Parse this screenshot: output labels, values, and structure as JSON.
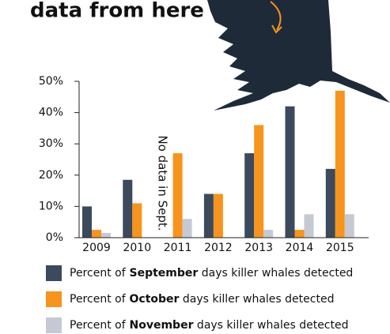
{
  "chart_data": {
    "type": "bar",
    "title": "data from here",
    "annotation": "No data in Sept.",
    "categories": [
      "2009",
      "2010",
      "2011",
      "2012",
      "2013",
      "2014",
      "2015"
    ],
    "series": [
      {
        "name": "Percent of September days killer whales detected",
        "color": "#3b4a5c",
        "values": [
          10,
          18.5,
          null,
          14,
          27,
          42,
          22
        ]
      },
      {
        "name": "Percent of October days killer whales detected",
        "color": "#f7941d",
        "values": [
          2.5,
          11,
          27,
          14,
          36,
          2.5,
          47
        ]
      },
      {
        "name": "Percent of November days killer whales detected",
        "color": "#c5c9d3",
        "values": [
          1.5,
          0,
          6,
          0,
          2.5,
          7.5,
          7.5
        ]
      }
    ],
    "ylim": [
      0,
      50
    ],
    "yticks": [
      {
        "value": 0,
        "label": "0%"
      },
      {
        "value": 10,
        "label": "10%"
      },
      {
        "value": 20,
        "label": "20%"
      },
      {
        "value": 30,
        "label": "30%"
      },
      {
        "value": 40,
        "label": "40%"
      },
      {
        "value": 50,
        "label": "50%"
      }
    ]
  }
}
